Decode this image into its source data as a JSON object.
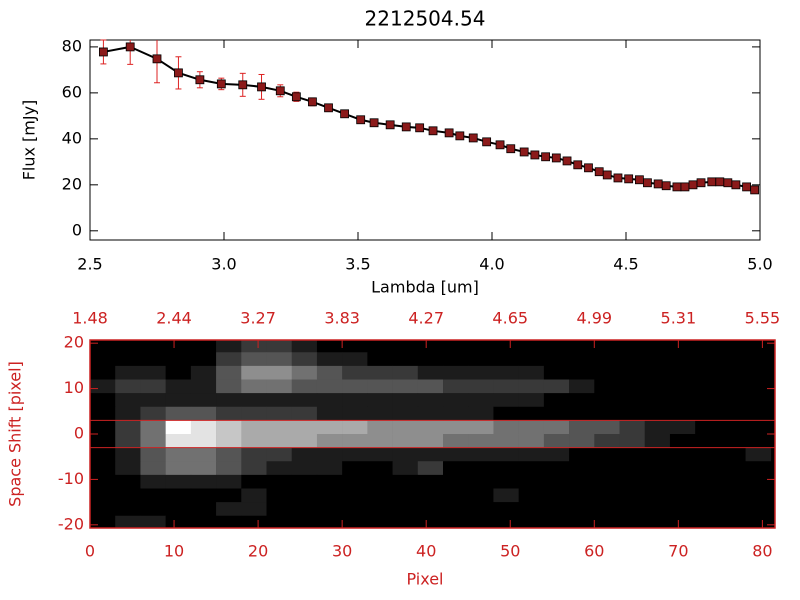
{
  "chart_data": [
    {
      "type": "line",
      "title": "2212504.54",
      "x_label": "Lambda [um]",
      "y_label": "Flux [mJy]",
      "x": [
        2.55,
        2.65,
        2.75,
        2.83,
        2.91,
        2.99,
        3.07,
        3.14,
        3.21,
        3.27,
        3.33,
        3.39,
        3.45,
        3.51,
        3.56,
        3.62,
        3.68,
        3.73,
        3.78,
        3.84,
        3.88,
        3.93,
        3.98,
        4.03,
        4.07,
        4.12,
        4.16,
        4.2,
        4.24,
        4.28,
        4.32,
        4.36,
        4.4,
        4.43,
        4.47,
        4.51,
        4.55,
        4.58,
        4.62,
        4.65,
        4.69,
        4.72,
        4.75,
        4.78,
        4.82,
        4.85,
        4.88,
        4.91,
        4.95,
        4.98
      ],
      "values": [
        77.8,
        80,
        74.8,
        68.7,
        65.7,
        63.9,
        63.5,
        62.6,
        60.9,
        58.3,
        56.1,
        53.5,
        50.9,
        48.3,
        47,
        46.1,
        45.2,
        44.8,
        43.5,
        42.6,
        41.3,
        40.4,
        38.7,
        37.4,
        35.7,
        34.3,
        33,
        32.2,
        31.7,
        30.4,
        28.7,
        27.4,
        25.7,
        24.3,
        23,
        22.6,
        22.2,
        20.9,
        20.4,
        19.6,
        19.1,
        19.1,
        20,
        20.9,
        21.3,
        21.3,
        20.9,
        20,
        19.1,
        17.8
      ],
      "errors": [
        5.2,
        7.6,
        10.4,
        7,
        3.5,
        2.5,
        5,
        5.4,
        2.6,
        2,
        1.7,
        0.8,
        0.6,
        0.5,
        0.5,
        0.5,
        0.5,
        0.5,
        0.5,
        0.5,
        0.5,
        0.5,
        0.5,
        0.5,
        0.5,
        0.5,
        0.5,
        0.5,
        0.5,
        0.5,
        0.5,
        0.5,
        0.5,
        0.5,
        0.5,
        0.5,
        0.5,
        0.5,
        0.5,
        0.5,
        0.5,
        0.5,
        0.5,
        0.5,
        0.5,
        0.5,
        0.5,
        0.5,
        0.5,
        0.5
      ],
      "color": "#000000",
      "marker_color": "#8b1a1a",
      "error_color": "#dd2222",
      "xlim": [
        2.5,
        5.0
      ],
      "ylim": [
        -4,
        83
      ],
      "xticks": [
        2.5,
        {
          "value": 3,
          "label": "3.0"
        },
        3.5,
        {
          "value": 4,
          "label": "4.0"
        },
        4.5,
        {
          "value": 5,
          "label": "5.0"
        }
      ],
      "yticks": [
        0,
        20,
        40,
        60,
        80
      ]
    },
    {
      "type": "heatmap",
      "x_label": "Pixel",
      "y_label": "Space Shift [pixel]",
      "color": "#cc2222",
      "xlim": [
        0,
        81.5
      ],
      "ylim": [
        -20.7,
        20.7
      ],
      "xticks": [
        0,
        10,
        20,
        30,
        40,
        50,
        60,
        70,
        80
      ],
      "yticks": [
        -20,
        -10,
        0,
        10,
        20
      ],
      "x2ticks": [
        {
          "value": 0,
          "label": "1.48"
        },
        {
          "value": 10,
          "label": "2.44"
        },
        {
          "value": 20,
          "label": "3.27"
        },
        {
          "value": 30,
          "label": "3.83"
        },
        {
          "value": 40,
          "label": "4.27"
        },
        {
          "value": 50,
          "label": "4.65"
        },
        {
          "value": 60,
          "label": "4.99"
        },
        {
          "value": 70,
          "label": "5.31"
        },
        {
          "value": 80,
          "label": "5.55"
        }
      ],
      "hlines": [
        3,
        -3
      ],
      "zlim": [
        0,
        9
      ],
      "x_bins": [
        0,
        3,
        6,
        9,
        12,
        15,
        18,
        21,
        24,
        27,
        30,
        33,
        36,
        39,
        42,
        45,
        48,
        51,
        54,
        57,
        60,
        63,
        66,
        69,
        72,
        75,
        78,
        81
      ],
      "y_bins": [
        21,
        18,
        15,
        12,
        9,
        6,
        3,
        0,
        -3,
        -6,
        -9,
        -12,
        -15,
        -18,
        -21
      ],
      "z": [
        [
          0,
          0,
          0,
          0,
          0,
          1,
          2,
          2,
          1,
          0,
          0,
          0,
          0,
          0,
          0,
          0,
          0,
          0,
          0,
          0,
          0,
          0,
          0,
          0,
          0,
          0,
          0
        ],
        [
          0,
          0,
          0,
          0,
          0,
          2,
          3,
          3,
          2,
          1,
          1,
          0,
          0,
          0,
          0,
          0,
          0,
          0,
          0,
          0,
          0,
          0,
          0,
          0,
          0,
          0,
          0
        ],
        [
          0,
          1,
          1,
          0,
          1,
          3,
          5,
          5,
          4,
          3,
          2,
          2,
          2,
          1,
          1,
          1,
          1,
          1,
          0,
          0,
          0,
          0,
          0,
          0,
          0,
          0,
          0
        ],
        [
          1,
          2,
          2,
          1,
          1,
          3,
          4,
          4,
          3,
          3,
          3,
          3,
          3,
          3,
          2,
          2,
          2,
          2,
          2,
          1,
          0,
          0,
          0,
          0,
          0,
          0,
          0
        ],
        [
          0,
          1,
          1,
          1,
          1,
          1,
          1,
          1,
          1,
          1,
          1,
          1,
          1,
          1,
          1,
          1,
          1,
          1,
          0,
          0,
          0,
          0,
          0,
          0,
          0,
          0,
          0
        ],
        [
          0,
          1,
          2,
          3,
          3,
          2,
          2,
          2,
          2,
          1,
          1,
          1,
          1,
          1,
          1,
          1,
          0,
          0,
          0,
          0,
          0,
          0,
          0,
          0,
          0,
          0,
          0
        ],
        [
          0,
          2,
          4,
          9,
          8,
          7,
          6,
          6,
          6,
          6,
          6,
          5,
          5,
          5,
          5,
          5,
          4,
          4,
          4,
          3,
          3,
          2,
          1,
          1,
          0,
          0,
          0
        ],
        [
          0,
          2,
          4,
          8,
          8,
          7,
          6,
          6,
          6,
          5,
          5,
          5,
          5,
          5,
          4,
          4,
          4,
          4,
          3,
          3,
          2,
          2,
          1,
          0,
          0,
          0,
          0
        ],
        [
          0,
          1,
          3,
          4,
          4,
          3,
          2,
          2,
          1,
          1,
          1,
          1,
          1,
          1,
          1,
          1,
          1,
          1,
          1,
          0,
          0,
          0,
          0,
          0,
          0,
          0,
          1
        ],
        [
          0,
          1,
          3,
          4,
          4,
          3,
          2,
          1,
          1,
          1,
          0,
          0,
          1,
          2,
          0,
          0,
          0,
          0,
          0,
          0,
          0,
          0,
          0,
          0,
          0,
          0,
          0
        ],
        [
          0,
          0,
          1,
          1,
          1,
          1,
          0,
          0,
          0,
          0,
          0,
          0,
          0,
          0,
          0,
          0,
          0,
          0,
          0,
          0,
          0,
          0,
          0,
          0,
          0,
          0,
          0
        ],
        [
          0,
          0,
          0,
          0,
          0,
          0,
          1,
          0,
          0,
          0,
          0,
          0,
          0,
          0,
          0,
          0,
          1,
          0,
          0,
          0,
          0,
          0,
          0,
          0,
          0,
          0,
          0
        ],
        [
          0,
          0,
          0,
          0,
          0,
          1,
          1,
          0,
          0,
          0,
          0,
          0,
          0,
          0,
          0,
          0,
          0,
          0,
          0,
          0,
          0,
          0,
          0,
          0,
          0,
          0,
          0
        ],
        [
          0,
          1,
          1,
          0,
          0,
          0,
          0,
          0,
          0,
          0,
          0,
          0,
          0,
          0,
          0,
          0,
          0,
          0,
          0,
          0,
          0,
          0,
          0,
          0,
          0,
          0,
          0
        ]
      ]
    }
  ]
}
